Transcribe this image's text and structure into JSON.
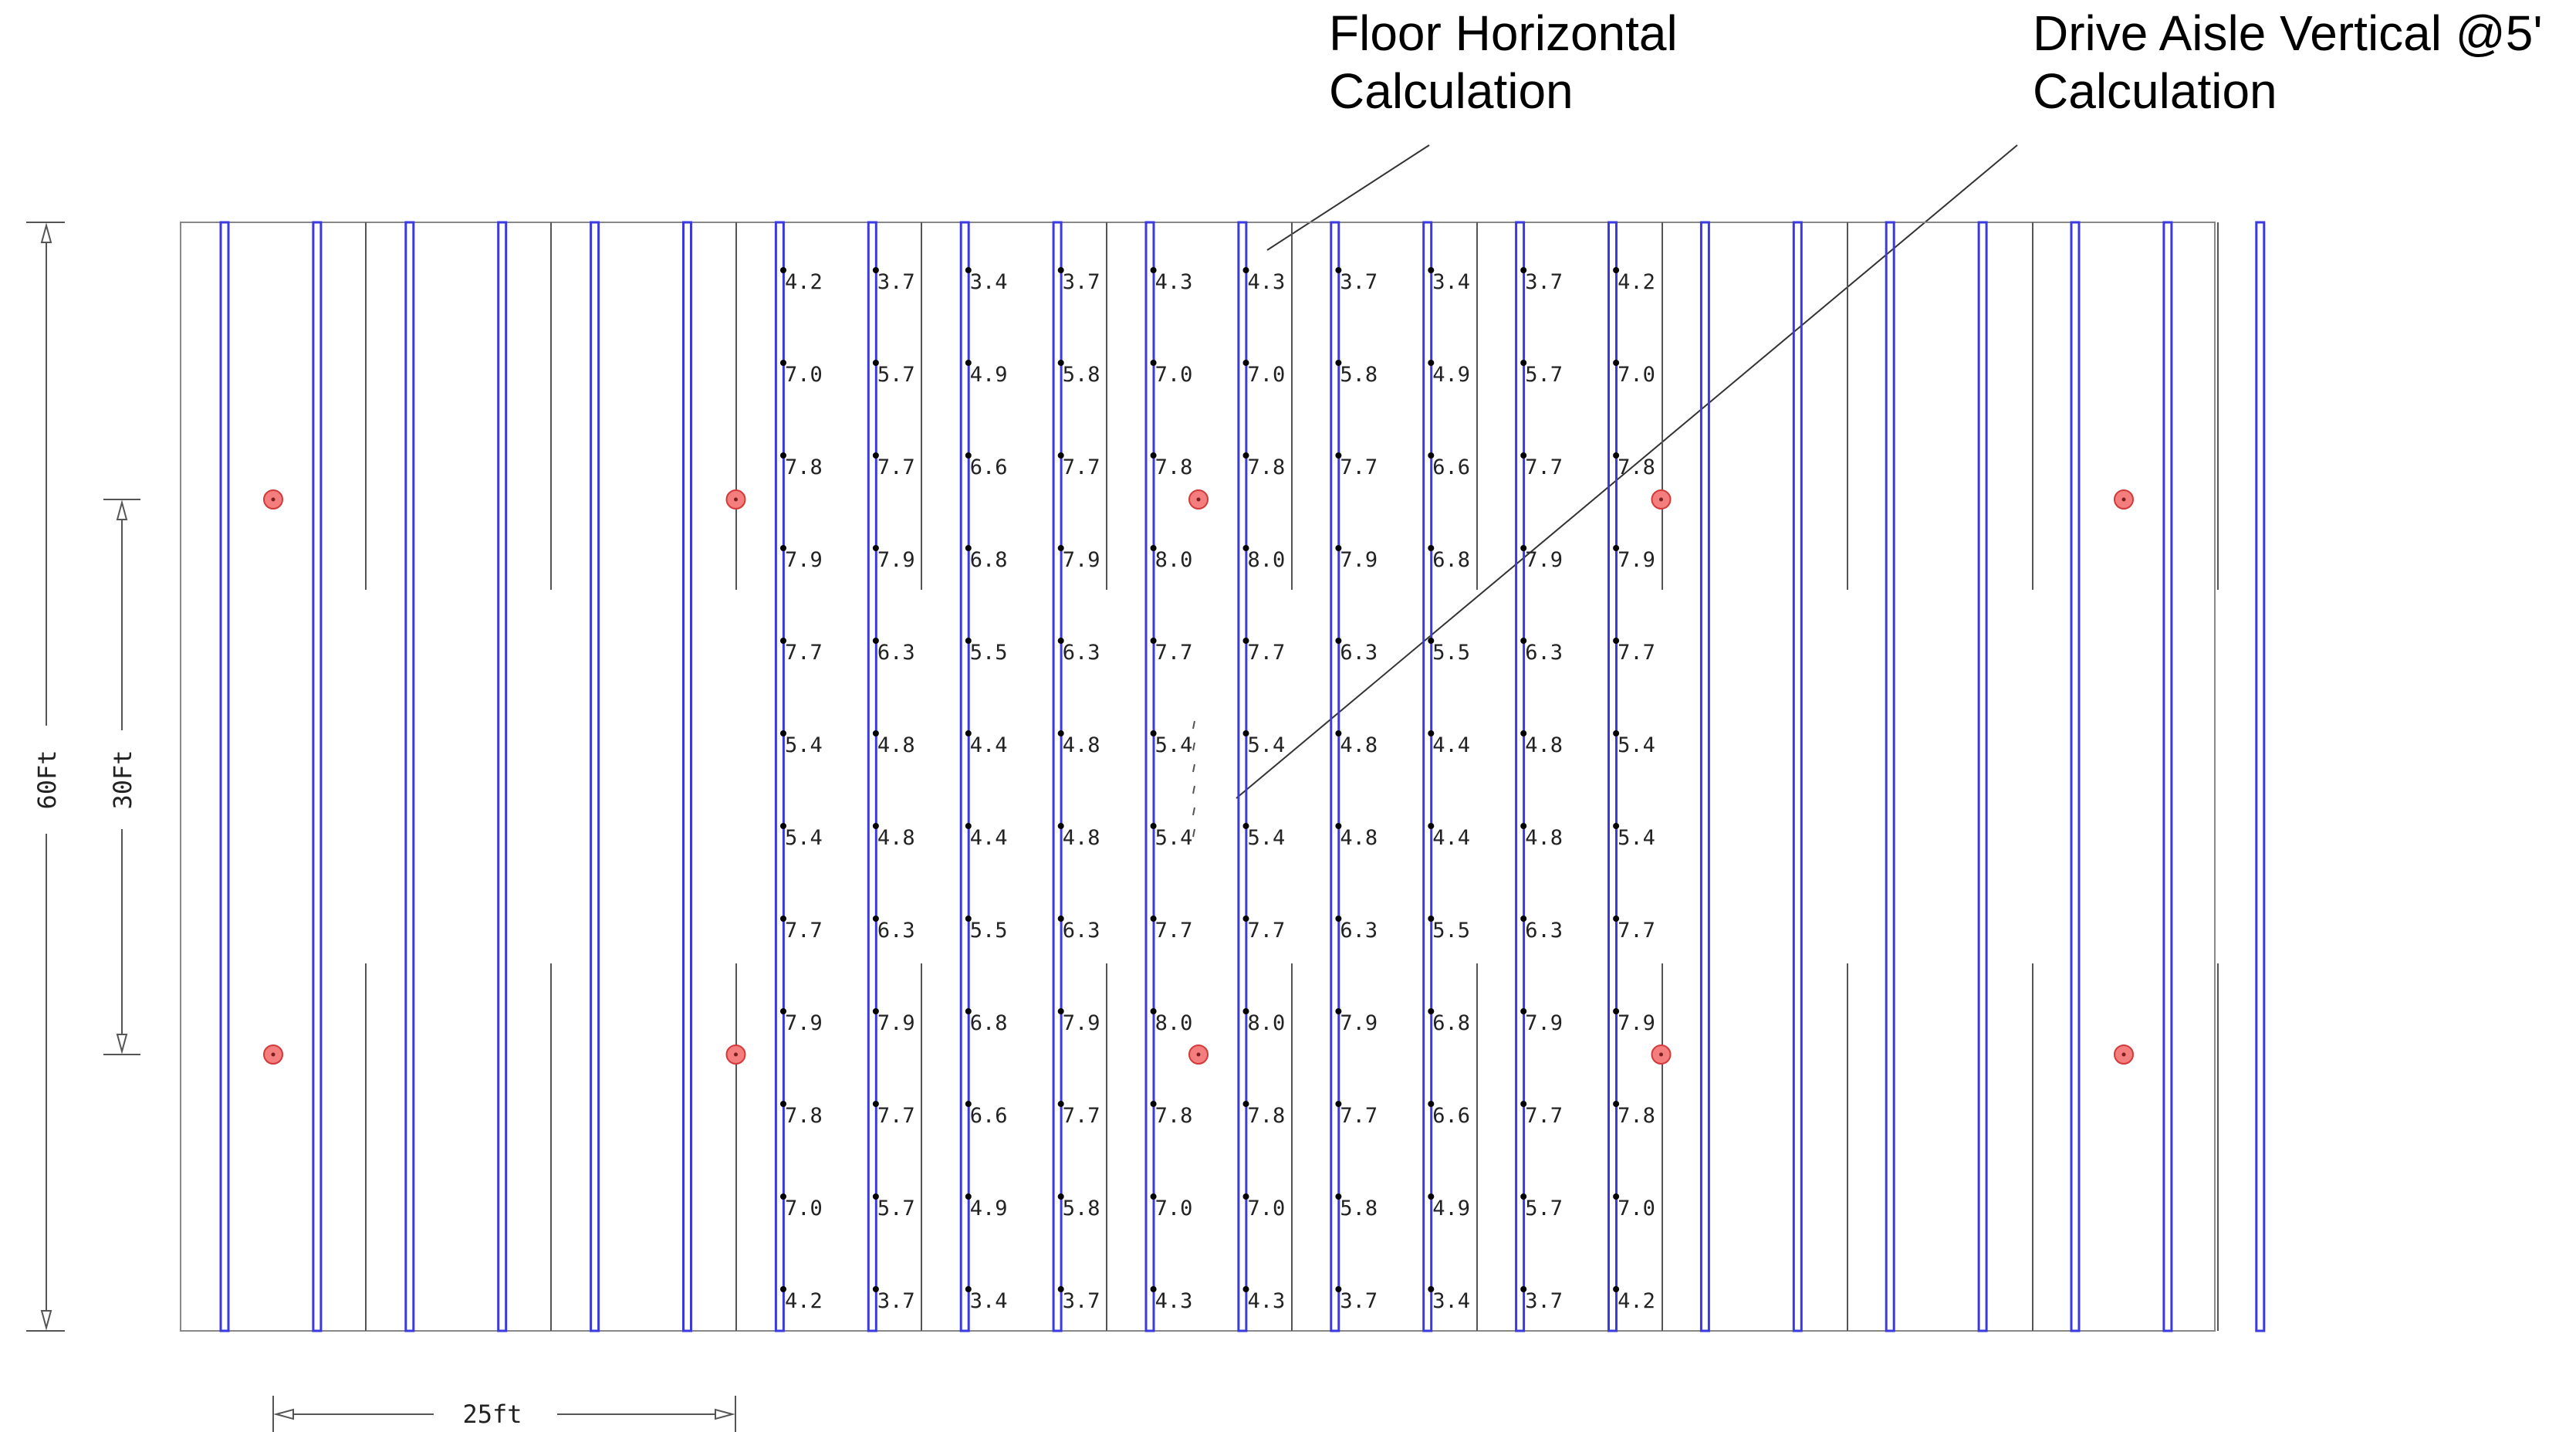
{
  "callouts": {
    "floor_horizontal": [
      "Floor Horizontal",
      "Calculation"
    ],
    "drive_aisle_vertical": [
      "Drive Aisle Vertical @5'",
      "Calculation"
    ]
  },
  "dimensions": {
    "overall_height": "60Ft",
    "fixture_spacing_vertical": "30Ft",
    "fixture_spacing_horizontal": "25ft"
  },
  "colors": {
    "rack_outline": "#3a3ae0",
    "fixture_fill": "#f47d7d",
    "building_outline": "#888888"
  },
  "icons": {
    "fixture": "light-fixture-icon",
    "calc_point": "calc-point-marker"
  },
  "floor_calc_grid": {
    "columns": 10,
    "rows": [
      [
        "4.2",
        "3.7",
        "3.4",
        "3.7",
        "4.3",
        "4.3",
        "3.7",
        "3.4",
        "3.7",
        "4.2"
      ],
      [
        "7.0",
        "5.7",
        "4.9",
        "5.8",
        "7.0",
        "7.0",
        "5.8",
        "4.9",
        "5.7",
        "7.0"
      ],
      [
        "7.8",
        "7.7",
        "6.6",
        "7.7",
        "7.8",
        "7.8",
        "7.7",
        "6.6",
        "7.7",
        "7.8"
      ],
      [
        "7.9",
        "7.9",
        "6.8",
        "7.9",
        "8.0",
        "8.0",
        "7.9",
        "6.8",
        "7.9",
        "7.9"
      ],
      [
        "7.7",
        "6.3",
        "5.5",
        "6.3",
        "7.7",
        "7.7",
        "6.3",
        "5.5",
        "6.3",
        "7.7"
      ],
      [
        "5.4",
        "4.8",
        "4.4",
        "4.8",
        "5.4",
        "5.4",
        "4.8",
        "4.4",
        "4.8",
        "5.4"
      ],
      [
        "5.4",
        "4.8",
        "4.4",
        "4.8",
        "5.4",
        "5.4",
        "4.8",
        "4.4",
        "4.8",
        "5.4"
      ],
      [
        "7.7",
        "6.3",
        "5.5",
        "6.3",
        "7.7",
        "7.7",
        "6.3",
        "5.5",
        "6.3",
        "7.7"
      ],
      [
        "7.9",
        "7.9",
        "6.8",
        "7.9",
        "8.0",
        "8.0",
        "7.9",
        "6.8",
        "7.9",
        "7.9"
      ],
      [
        "7.8",
        "7.7",
        "6.6",
        "7.7",
        "7.8",
        "7.8",
        "7.7",
        "6.6",
        "7.7",
        "7.8"
      ],
      [
        "7.0",
        "5.7",
        "4.9",
        "5.8",
        "7.0",
        "7.0",
        "5.8",
        "4.9",
        "5.7",
        "7.0"
      ],
      [
        "4.2",
        "3.7",
        "3.4",
        "3.7",
        "4.3",
        "4.3",
        "3.7",
        "3.4",
        "3.7",
        "4.2"
      ]
    ]
  },
  "fixtures": {
    "rows": 2,
    "per_row": 5
  },
  "racks": {
    "count": 23
  },
  "drive_aisle_marks": 6
}
